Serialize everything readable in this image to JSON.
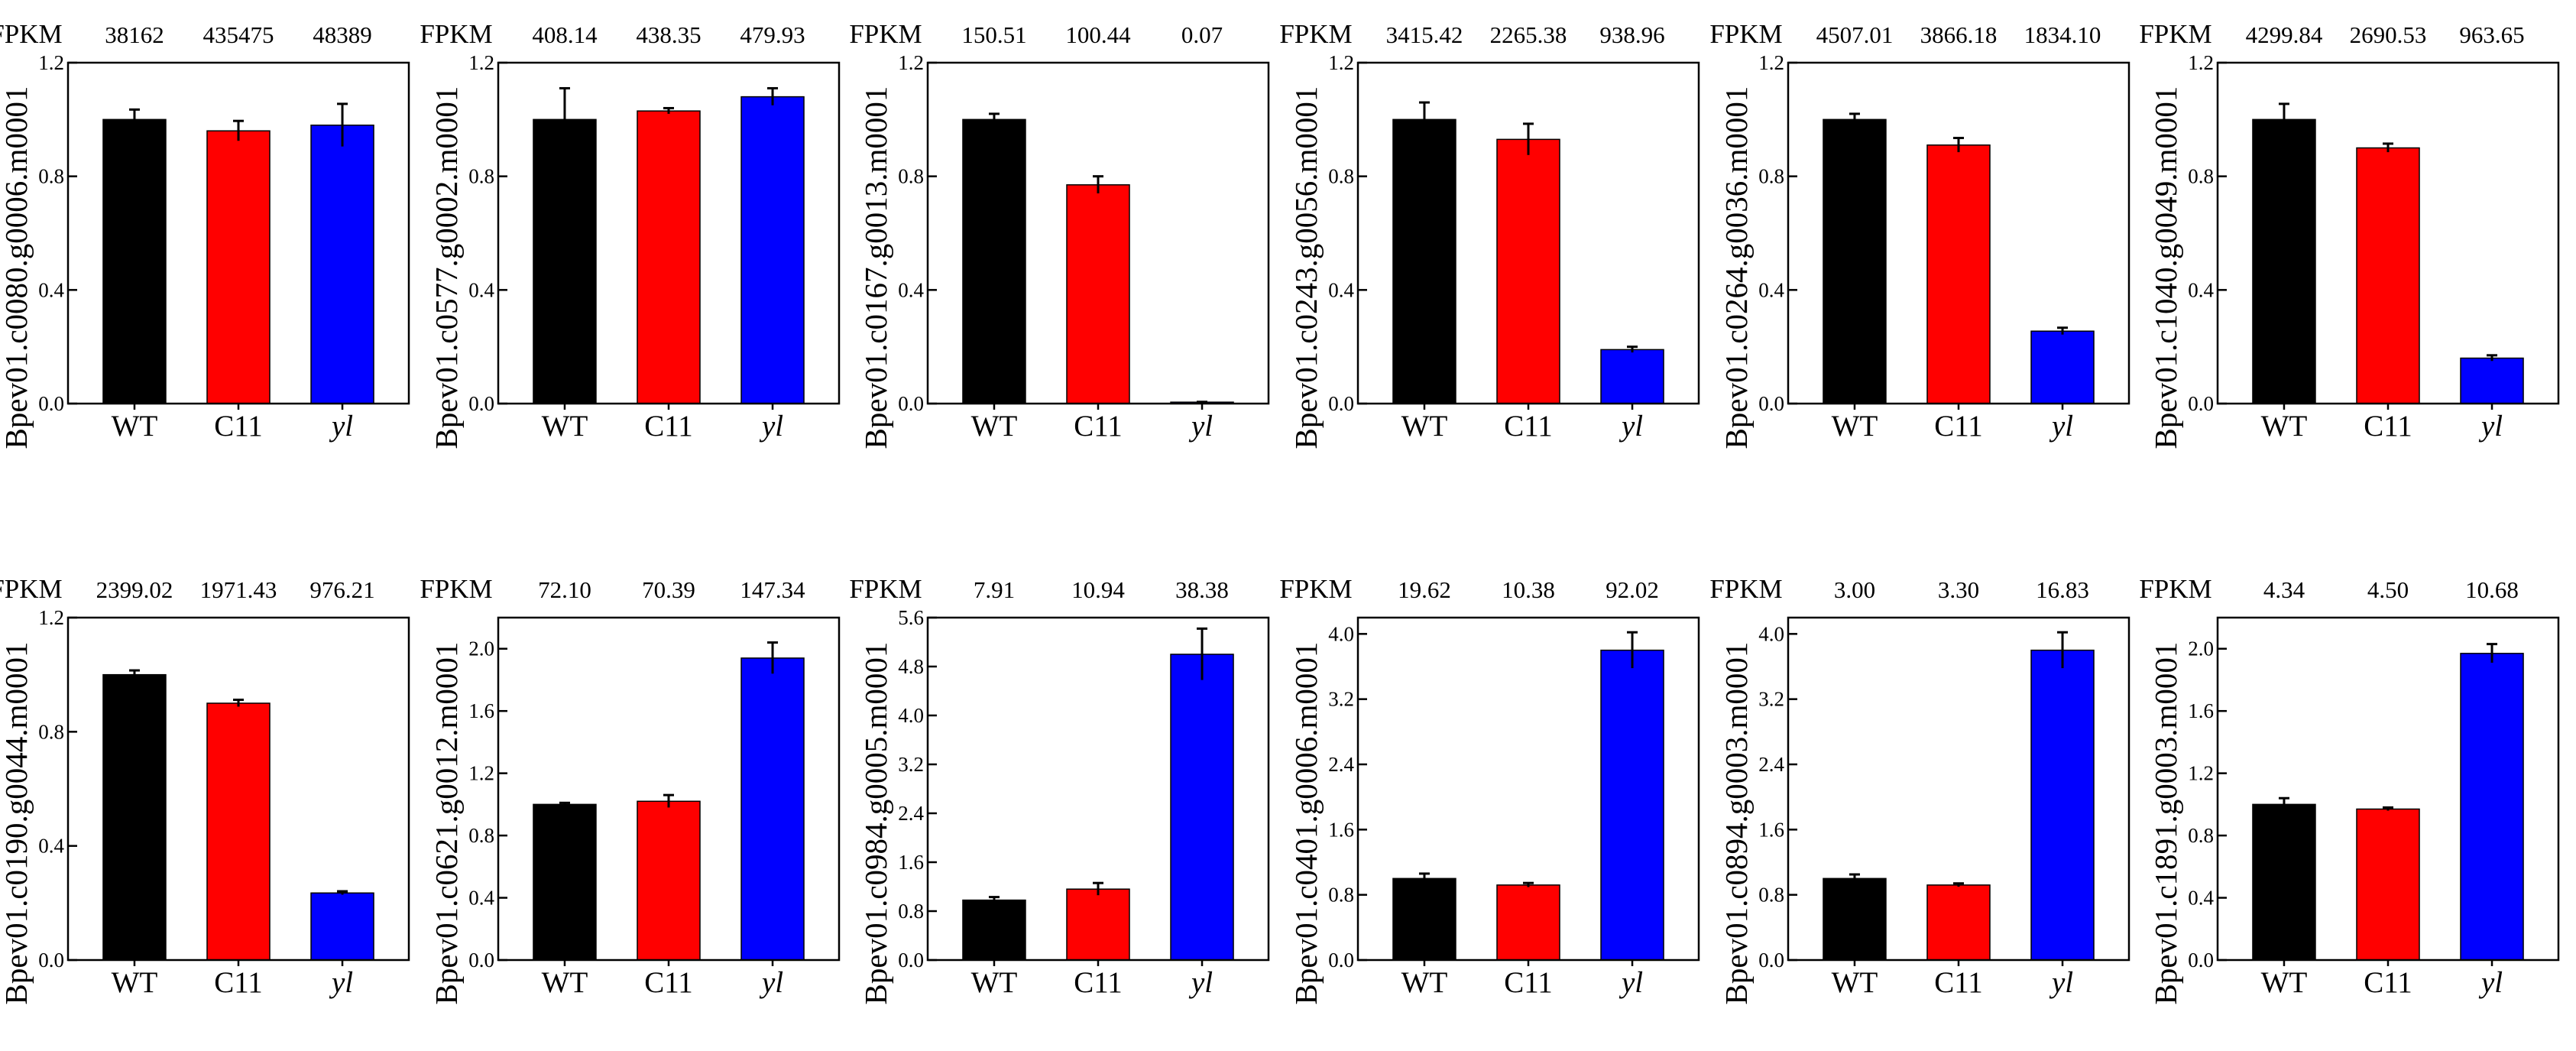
{
  "colors": {
    "WT": "#000000",
    "C11": "#ff0000",
    "yl": "#0000ff"
  },
  "fpkm_label": "FPKM",
  "chart_data": [
    {
      "type": "bar",
      "ylabel": "Bpev01.c0080.g0006.m0001",
      "categories": [
        "WT",
        "C11",
        "yl"
      ],
      "fpkm": [
        "38162",
        "435475",
        "48389"
      ],
      "values": [
        1.0,
        0.96,
        0.98
      ],
      "errors": [
        0.035,
        0.035,
        0.075
      ],
      "ylim": [
        0,
        1.2
      ],
      "yticks": [
        "0.0",
        "0.4",
        "0.8",
        "1.2"
      ]
    },
    {
      "type": "bar",
      "ylabel": "Bpev01.c0577.g0002.m0001",
      "categories": [
        "WT",
        "C11",
        "yl"
      ],
      "fpkm": [
        "408.14",
        "438.35",
        "479.93"
      ],
      "values": [
        1.0,
        1.03,
        1.08
      ],
      "errors": [
        0.11,
        0.01,
        0.03
      ],
      "ylim": [
        0,
        1.2
      ],
      "yticks": [
        "0.0",
        "0.4",
        "0.8",
        "1.2"
      ]
    },
    {
      "type": "bar",
      "ylabel": "Bpev01.c0167.g0013.m0001",
      "categories": [
        "WT",
        "C11",
        "yl"
      ],
      "fpkm": [
        "150.51",
        "100.44",
        "0.07"
      ],
      "values": [
        1.0,
        0.77,
        0.005
      ],
      "errors": [
        0.02,
        0.03,
        0.001
      ],
      "ylim": [
        0,
        1.2
      ],
      "yticks": [
        "0.0",
        "0.4",
        "0.8",
        "1.2"
      ]
    },
    {
      "type": "bar",
      "ylabel": "Bpev01.c0243.g0056.m0001",
      "categories": [
        "WT",
        "C11",
        "yl"
      ],
      "fpkm": [
        "3415.42",
        "2265.38",
        "938.96"
      ],
      "values": [
        1.0,
        0.93,
        0.19
      ],
      "errors": [
        0.06,
        0.055,
        0.01
      ],
      "ylim": [
        0,
        1.2
      ],
      "yticks": [
        "0.0",
        "0.4",
        "0.8",
        "1.2"
      ]
    },
    {
      "type": "bar",
      "ylabel": "Bpev01.c0264.g0036.m0001",
      "categories": [
        "WT",
        "C11",
        "yl"
      ],
      "fpkm": [
        "4507.01",
        "3866.18",
        "1834.10"
      ],
      "values": [
        1.0,
        0.91,
        0.255
      ],
      "errors": [
        0.02,
        0.025,
        0.012
      ],
      "ylim": [
        0,
        1.2
      ],
      "yticks": [
        "0.0",
        "0.4",
        "0.8",
        "1.2"
      ]
    },
    {
      "type": "bar",
      "ylabel": "Bpev01.c1040.g0049.m0001",
      "categories": [
        "WT",
        "C11",
        "yl"
      ],
      "fpkm": [
        "4299.84",
        "2690.53",
        "963.65"
      ],
      "values": [
        1.0,
        0.9,
        0.16
      ],
      "errors": [
        0.055,
        0.015,
        0.01
      ],
      "ylim": [
        0,
        1.2
      ],
      "yticks": [
        "0.0",
        "0.4",
        "0.8",
        "1.2"
      ]
    },
    {
      "type": "bar",
      "ylabel": "Bpev01.c0190.g0044.m0001",
      "categories": [
        "WT",
        "C11",
        "yl"
      ],
      "fpkm": [
        "2399.02",
        "1971.43",
        "976.21"
      ],
      "values": [
        1.0,
        0.9,
        0.235
      ],
      "errors": [
        0.015,
        0.012,
        0.006
      ],
      "ylim": [
        0,
        1.2
      ],
      "yticks": [
        "0.0",
        "0.4",
        "0.8",
        "1.2"
      ]
    },
    {
      "type": "bar",
      "ylabel": "Bpev01.c0621.g0012.m0001",
      "categories": [
        "WT",
        "C11",
        "yl"
      ],
      "fpkm": [
        "72.10",
        "70.39",
        "147.34"
      ],
      "values": [
        1.0,
        1.02,
        1.94
      ],
      "errors": [
        0.01,
        0.04,
        0.1
      ],
      "ylim": [
        0,
        2.2
      ],
      "yticks": [
        "0.0",
        "0.4",
        "0.8",
        "1.2",
        "1.6",
        "2.0"
      ]
    },
    {
      "type": "bar",
      "ylabel": "Bpev01.c0984.g0005.m0001",
      "categories": [
        "WT",
        "C11",
        "yl"
      ],
      "fpkm": [
        "7.91",
        "10.94",
        "38.38"
      ],
      "values": [
        0.98,
        1.16,
        5.0
      ],
      "errors": [
        0.05,
        0.1,
        0.42
      ],
      "ylim": [
        0,
        5.6
      ],
      "yticks": [
        "0.0",
        "0.8",
        "1.6",
        "2.4",
        "3.2",
        "4.0",
        "4.8",
        "5.6"
      ]
    },
    {
      "type": "bar",
      "ylabel": "Bpev01.c0401.g0006.m0001",
      "categories": [
        "WT",
        "C11",
        "yl"
      ],
      "fpkm": [
        "19.62",
        "10.38",
        "92.02"
      ],
      "values": [
        1.0,
        0.92,
        3.8
      ],
      "errors": [
        0.06,
        0.025,
        0.22
      ],
      "ylim": [
        0,
        4.2
      ],
      "yticks": [
        "0.0",
        "0.8",
        "1.6",
        "2.4",
        "3.2",
        "4.0"
      ]
    },
    {
      "type": "bar",
      "ylabel": "Bpev01.c0894.g0003.m0001",
      "categories": [
        "WT",
        "C11",
        "yl"
      ],
      "fpkm": [
        "3.00",
        "3.30",
        "16.83"
      ],
      "values": [
        1.0,
        0.92,
        3.8
      ],
      "errors": [
        0.05,
        0.02,
        0.22
      ],
      "ylim": [
        0,
        4.2
      ],
      "yticks": [
        "0.0",
        "0.8",
        "1.6",
        "2.4",
        "3.2",
        "4.0"
      ]
    },
    {
      "type": "bar",
      "ylabel": "Bpev01.c1891.g0003.m0001",
      "categories": [
        "WT",
        "C11",
        "yl"
      ],
      "fpkm": [
        "4.34",
        "4.50",
        "10.68"
      ],
      "values": [
        1.0,
        0.97,
        1.97
      ],
      "errors": [
        0.04,
        0.01,
        0.06
      ],
      "ylim": [
        0,
        2.2
      ],
      "yticks": [
        "0.0",
        "0.4",
        "0.8",
        "1.2",
        "1.6",
        "2.0"
      ]
    }
  ]
}
